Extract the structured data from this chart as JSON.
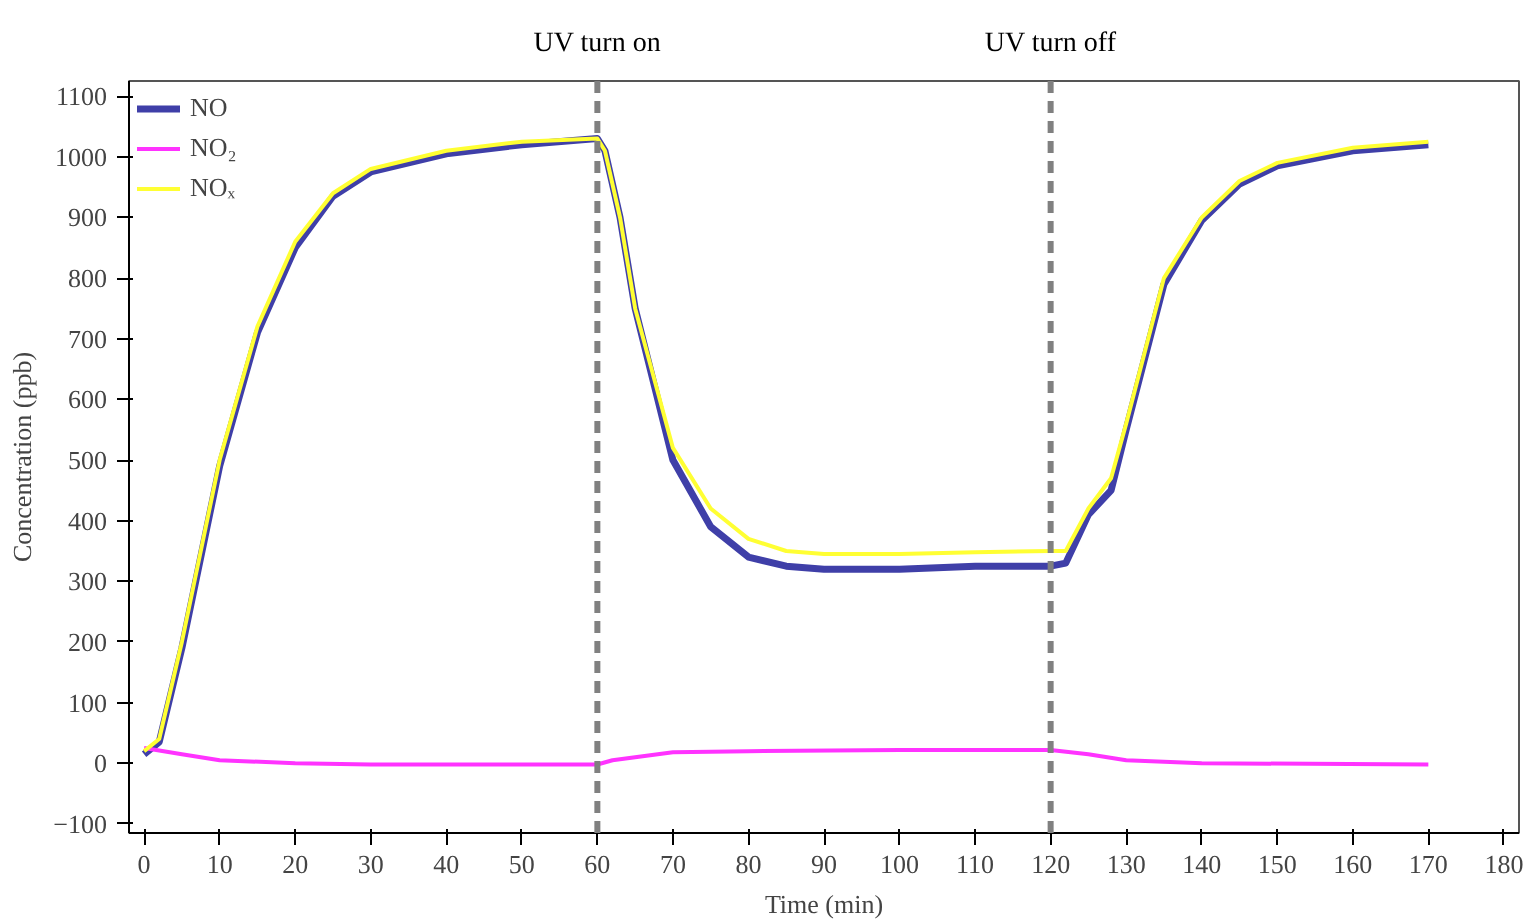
{
  "chart_data": {
    "type": "line",
    "xlabel": "Time (min)",
    "ylabel": "Concentration (ppb)",
    "xlim": [
      -2,
      182
    ],
    "ylim": [
      -115,
      1125
    ],
    "xticks": [
      0,
      10,
      20,
      30,
      40,
      50,
      60,
      70,
      80,
      90,
      100,
      110,
      120,
      130,
      140,
      150,
      160,
      170,
      180
    ],
    "yticks": [
      -100,
      0,
      100,
      200,
      300,
      400,
      500,
      600,
      700,
      800,
      900,
      1000,
      1100
    ],
    "grid": false,
    "legend": "top left",
    "line_style": "solid",
    "marker": "none",
    "ref_lines": [
      {
        "axis": "x",
        "value": 60,
        "label": "UV turn on",
        "color": "#808080",
        "line_style": "dashed"
      },
      {
        "axis": "x",
        "value": 120,
        "label": "UV turn off",
        "color": "#808080",
        "line_style": "dashed"
      }
    ],
    "series": [
      {
        "name": "NO",
        "color": "#3f3fa8",
        "x": [
          0,
          2,
          5,
          10,
          15,
          20,
          25,
          30,
          40,
          50,
          60,
          61,
          63,
          65,
          70,
          75,
          80,
          85,
          90,
          100,
          110,
          120,
          122,
          125,
          128,
          130,
          135,
          140,
          145,
          150,
          160,
          170
        ],
        "values": [
          15,
          35,
          190,
          490,
          710,
          850,
          935,
          975,
          1005,
          1020,
          1030,
          1010,
          900,
          750,
          500,
          390,
          340,
          325,
          320,
          320,
          325,
          325,
          330,
          410,
          450,
          550,
          790,
          895,
          955,
          985,
          1010,
          1020
        ]
      },
      {
        "name": "NO₂",
        "color": "#ff33ff",
        "x": [
          0,
          5,
          10,
          20,
          30,
          60,
          62,
          65,
          70,
          80,
          100,
          120,
          125,
          130,
          140,
          170
        ],
        "values": [
          25,
          15,
          5,
          0,
          -2,
          -2,
          5,
          10,
          18,
          20,
          22,
          22,
          15,
          5,
          0,
          -2
        ]
      },
      {
        "name": "NOₓ",
        "color": "#ffff33",
        "x": [
          0,
          2,
          5,
          10,
          15,
          20,
          25,
          30,
          40,
          50,
          60,
          61,
          63,
          65,
          70,
          75,
          80,
          85,
          90,
          100,
          110,
          120,
          122,
          125,
          128,
          130,
          135,
          140,
          145,
          150,
          160,
          170
        ],
        "values": [
          20,
          40,
          200,
          500,
          720,
          860,
          940,
          980,
          1010,
          1025,
          1030,
          1010,
          900,
          750,
          520,
          420,
          370,
          350,
          345,
          345,
          348,
          350,
          350,
          420,
          470,
          560,
          800,
          900,
          960,
          990,
          1015,
          1025
        ]
      }
    ]
  }
}
